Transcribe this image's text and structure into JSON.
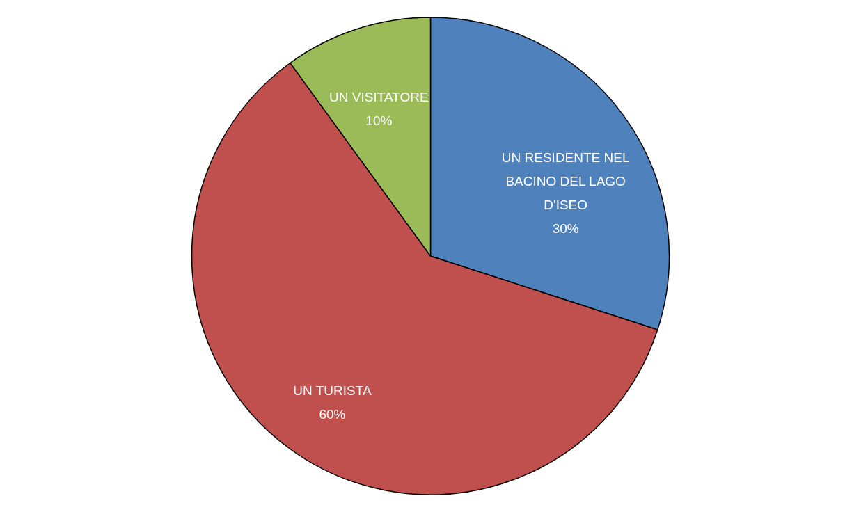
{
  "chart_data": {
    "type": "pie",
    "categories": [
      "UN RESIDENTE NEL BACINO DEL LAGO D'ISEO",
      "UN TURISTA",
      "UN VISITATORE"
    ],
    "values": [
      30,
      60,
      10
    ],
    "colors": [
      "#4f81bd",
      "#c0504d",
      "#9bbb59"
    ],
    "value_labels": [
      "30%",
      "60%",
      "10%"
    ]
  }
}
